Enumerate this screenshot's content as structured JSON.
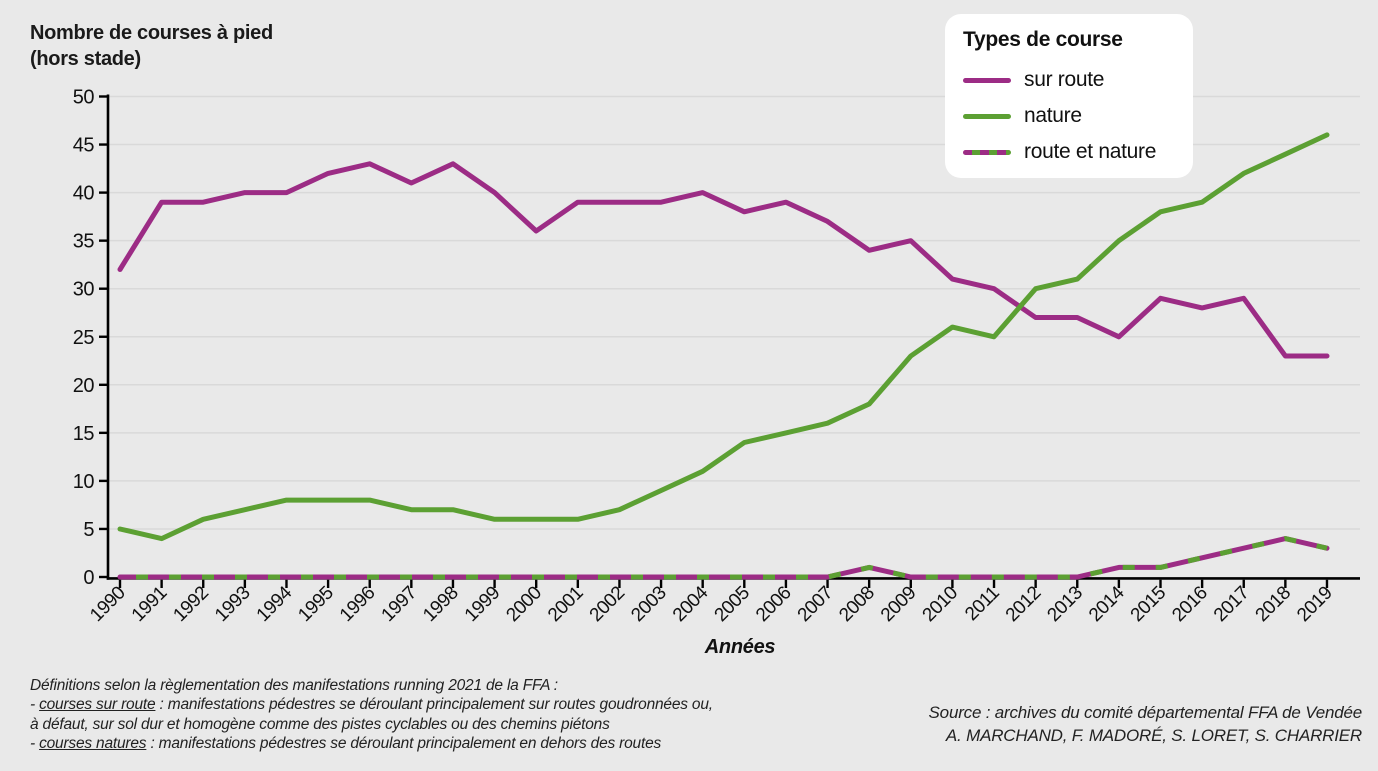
{
  "page": {
    "background": "#e9e9e9"
  },
  "title": {
    "line1": "Nombre de courses à pied",
    "line2": "(hors stade)"
  },
  "legend": {
    "title": "Types de course"
  },
  "x_axis_title": "Années",
  "chart_data": {
    "type": "line",
    "title": "Nombre de courses à pied (hors stade)",
    "xlabel": "Années",
    "ylabel": "",
    "ylim": [
      0,
      50
    ],
    "ytick_step": 5,
    "grid": true,
    "legend_position": "top-right",
    "legend_title": "Types de course",
    "x": [
      1990,
      1991,
      1992,
      1993,
      1994,
      1995,
      1996,
      1997,
      1998,
      1999,
      2000,
      2001,
      2002,
      2003,
      2004,
      2005,
      2006,
      2007,
      2008,
      2009,
      2010,
      2011,
      2012,
      2013,
      2014,
      2015,
      2016,
      2017,
      2018,
      2019
    ],
    "series": [
      {
        "name": "sur route",
        "style": "solid",
        "color": "#9c2c85",
        "values": [
          32,
          39,
          39,
          40,
          40,
          42,
          43,
          41,
          43,
          40,
          36,
          39,
          39,
          39,
          40,
          38,
          39,
          37,
          34,
          35,
          31,
          30,
          27,
          27,
          25,
          29,
          28,
          29,
          23,
          23
        ]
      },
      {
        "name": "nature",
        "style": "solid",
        "color": "#5ca033",
        "values": [
          5,
          4,
          6,
          7,
          8,
          8,
          8,
          7,
          7,
          6,
          6,
          6,
          7,
          9,
          11,
          14,
          15,
          16,
          18,
          23,
          26,
          25,
          30,
          31,
          35,
          38,
          39,
          42,
          44,
          46
        ]
      },
      {
        "name": "route et nature",
        "style": "dashed",
        "color": "#9c2c85",
        "color2": "#5ca033",
        "values": [
          0,
          0,
          0,
          0,
          0,
          0,
          0,
          0,
          0,
          0,
          0,
          0,
          0,
          0,
          0,
          0,
          0,
          0,
          1,
          0,
          0,
          0,
          0,
          0,
          1,
          1,
          2,
          3,
          4,
          3
        ]
      }
    ],
    "colors": {
      "background": "#e9e9e9",
      "gridline": "#d9d9d9",
      "axis": "#000000"
    }
  },
  "footnotes": {
    "lines": [
      [
        {
          "t": "Définitions selon la règlementation des manifestations running 2021 de la FFA :"
        }
      ],
      [
        {
          "t": "- "
        },
        {
          "t": "courses sur route",
          "u": true
        },
        {
          "t": " : manifestations pédestres se déroulant principalement sur routes goudronnées ou,"
        }
      ],
      [
        {
          "t": "à défaut, sur sol dur et homogène comme des pistes cyclables ou des chemins piétons"
        }
      ],
      [
        {
          "t": "- "
        },
        {
          "t": "courses natures",
          "u": true
        },
        {
          "t": " : manifestations pédestres se déroulant principalement en dehors des routes"
        }
      ]
    ]
  },
  "source": {
    "line1": "Source : archives du comité départemental FFA de Vendée",
    "line2": "A. MARCHAND, F. MADORÉ, S. LORET, S. CHARRIER"
  }
}
